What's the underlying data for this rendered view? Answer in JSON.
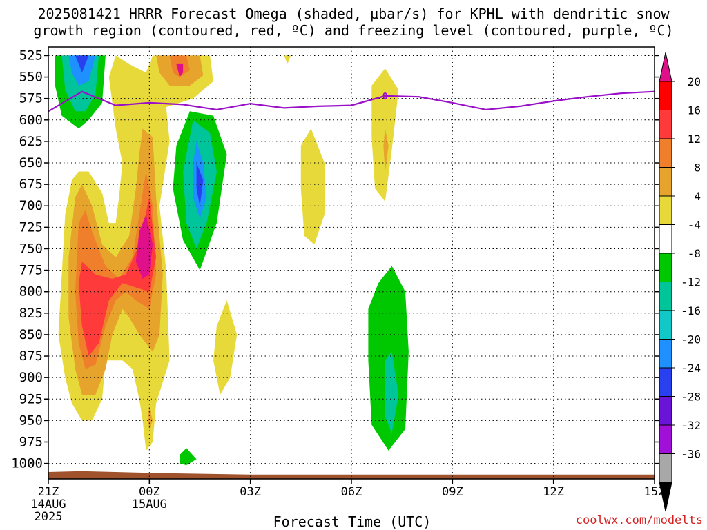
{
  "title": {
    "line1": "2025081421 HRRR Forecast Omega (shaded, µbar/s) for KPHL with dendritic snow",
    "line2": "growth region (contoured, red, ºC) and freezing level (contoured, purple, ºC)"
  },
  "xlabel": "Forecast Time (UTC)",
  "credit": "coolwx.com/modelts",
  "chart_data": {
    "type": "heatmap",
    "title": "2025081421 HRRR Forecast Omega (shaded, µbar/s) for KPHL with dendritic snow growth region (contoured, red, ºC) and freezing level (contoured, purple, ºC)",
    "xlabel": "Forecast Time (UTC)",
    "ylabel": "",
    "x_range_hours": [
      0,
      18
    ],
    "y_range_hPa": [
      1000,
      525
    ],
    "y_axis_inverted": true,
    "grid": true,
    "x_ticks": [
      {
        "hour": 0,
        "label": "21Z",
        "sub": [
          "14AUG",
          "2025"
        ]
      },
      {
        "hour": 3,
        "label": "00Z",
        "sub": [
          "15AUG"
        ]
      },
      {
        "hour": 6,
        "label": "03Z",
        "sub": []
      },
      {
        "hour": 9,
        "label": "06Z",
        "sub": []
      },
      {
        "hour": 12,
        "label": "09Z",
        "sub": []
      },
      {
        "hour": 15,
        "label": "12Z",
        "sub": []
      },
      {
        "hour": 18,
        "label": "15Z",
        "sub": []
      }
    ],
    "y_ticks": [
      525,
      550,
      575,
      600,
      625,
      650,
      675,
      700,
      725,
      750,
      775,
      800,
      825,
      850,
      875,
      900,
      925,
      950,
      975,
      1000
    ],
    "colorbar": {
      "levels": [
        20,
        16,
        12,
        8,
        4,
        -4,
        -8,
        -12,
        -16,
        -20,
        -24,
        -28,
        -32,
        -36
      ],
      "colors": [
        "#ff0000",
        "#ff3a3a",
        "#ef7f2a",
        "#e6a42c",
        "#e8d93a",
        "#ffffff",
        "#00c800",
        "#00c49a",
        "#10c8c8",
        "#1e90ff",
        "#2840f0",
        "#6a14d8",
        "#a010d8",
        "#a8a8a8"
      ],
      "top_arrow_color": "#e0108a",
      "bottom_arrow_color": "#000000"
    },
    "freezing_level": {
      "label": "0",
      "points": [
        {
          "hour": 0.0,
          "hPa": 590
        },
        {
          "hour": 1.0,
          "hPa": 567
        },
        {
          "hour": 2.0,
          "hPa": 583
        },
        {
          "hour": 3.0,
          "hPa": 580
        },
        {
          "hour": 4.0,
          "hPa": 582
        },
        {
          "hour": 5.0,
          "hPa": 588
        },
        {
          "hour": 6.0,
          "hPa": 581
        },
        {
          "hour": 7.0,
          "hPa": 586
        },
        {
          "hour": 8.0,
          "hPa": 584
        },
        {
          "hour": 9.0,
          "hPa": 583
        },
        {
          "hour": 10.0,
          "hPa": 572
        },
        {
          "hour": 11.0,
          "hPa": 573
        },
        {
          "hour": 12.0,
          "hPa": 580
        },
        {
          "hour": 13.0,
          "hPa": 588
        },
        {
          "hour": 14.0,
          "hPa": 584
        },
        {
          "hour": 15.0,
          "hPa": 578
        },
        {
          "hour": 16.0,
          "hPa": 573
        },
        {
          "hour": 17.0,
          "hPa": 569
        },
        {
          "hour": 18.0,
          "hPa": 567
        }
      ]
    },
    "terrain": {
      "color": "#a0522d",
      "points": [
        {
          "hour": 0.0,
          "hPa": 1010
        },
        {
          "hour": 1.0,
          "hPa": 1009
        },
        {
          "hour": 3.0,
          "hPa": 1011
        },
        {
          "hour": 6.0,
          "hPa": 1013
        },
        {
          "hour": 9.0,
          "hPa": 1013
        },
        {
          "hour": 12.0,
          "hPa": 1013
        },
        {
          "hour": 15.0,
          "hPa": 1013
        },
        {
          "hour": 18.0,
          "hPa": 1013
        }
      ]
    },
    "omega_regions": [
      {
        "level": -8,
        "color": "#00c800",
        "points": [
          [
            0.2,
            525
          ],
          [
            1.7,
            525
          ],
          [
            1.6,
            580
          ],
          [
            1.2,
            600
          ],
          [
            0.9,
            610
          ],
          [
            0.4,
            595
          ],
          [
            0.2,
            560
          ]
        ]
      },
      {
        "level": -12,
        "color": "#00c49a",
        "points": [
          [
            0.4,
            525
          ],
          [
            1.5,
            525
          ],
          [
            1.4,
            570
          ],
          [
            1.1,
            590
          ],
          [
            0.8,
            590
          ],
          [
            0.5,
            565
          ]
        ]
      },
      {
        "level": -16,
        "color": "#1e90ff",
        "points": [
          [
            0.6,
            525
          ],
          [
            1.4,
            525
          ],
          [
            1.2,
            555
          ],
          [
            0.9,
            560
          ],
          [
            0.7,
            545
          ]
        ]
      },
      {
        "level": -24,
        "color": "#2840f0",
        "points": [
          [
            0.8,
            525
          ],
          [
            1.2,
            525
          ],
          [
            1.0,
            545
          ]
        ]
      },
      {
        "level": 4,
        "color": "#e8d93a",
        "points": [
          [
            2.0,
            525
          ],
          [
            2.4,
            535
          ],
          [
            2.9,
            545
          ],
          [
            3.1,
            525
          ],
          [
            4.8,
            525
          ],
          [
            4.9,
            555
          ],
          [
            4.3,
            575
          ],
          [
            3.5,
            585
          ],
          [
            3.6,
            625
          ],
          [
            3.3,
            700
          ],
          [
            3.5,
            775
          ],
          [
            3.6,
            880
          ],
          [
            3.2,
            930
          ],
          [
            3.1,
            975
          ],
          [
            2.9,
            985
          ],
          [
            2.8,
            950
          ],
          [
            2.7,
            925
          ],
          [
            2.5,
            890
          ],
          [
            2.2,
            880
          ],
          [
            1.7,
            880
          ],
          [
            1.6,
            925
          ],
          [
            1.3,
            950
          ],
          [
            1.0,
            950
          ],
          [
            0.7,
            930
          ],
          [
            0.5,
            900
          ],
          [
            0.3,
            850
          ],
          [
            0.4,
            780
          ],
          [
            0.5,
            710
          ],
          [
            0.7,
            670
          ],
          [
            0.9,
            660
          ],
          [
            1.2,
            660
          ],
          [
            1.6,
            685
          ],
          [
            1.8,
            720
          ],
          [
            2.0,
            720
          ],
          [
            2.1,
            690
          ],
          [
            2.2,
            650
          ],
          [
            2.0,
            610
          ],
          [
            1.9,
            580
          ],
          [
            1.8,
            550
          ]
        ]
      },
      {
        "level": 8,
        "color": "#e6a42c",
        "points": [
          [
            3.2,
            525
          ],
          [
            4.5,
            525
          ],
          [
            4.6,
            548
          ],
          [
            4.2,
            560
          ],
          [
            3.6,
            560
          ],
          [
            3.3,
            545
          ]
        ]
      },
      {
        "level": 8,
        "color": "#e6a42c",
        "points": [
          [
            2.8,
            610
          ],
          [
            3.1,
            620
          ],
          [
            3.2,
            690
          ],
          [
            3.4,
            780
          ],
          [
            3.3,
            850
          ],
          [
            3.1,
            870
          ],
          [
            2.7,
            850
          ],
          [
            2.4,
            830
          ],
          [
            2.2,
            820
          ],
          [
            1.9,
            850
          ],
          [
            1.7,
            890
          ],
          [
            1.4,
            920
          ],
          [
            1.0,
            920
          ],
          [
            0.8,
            890
          ],
          [
            0.6,
            830
          ],
          [
            0.6,
            760
          ],
          [
            0.8,
            690
          ],
          [
            1.0,
            675
          ],
          [
            1.3,
            700
          ],
          [
            1.6,
            745
          ],
          [
            2.0,
            760
          ],
          [
            2.4,
            735
          ],
          [
            2.6,
            680
          ],
          [
            2.7,
            640
          ]
        ]
      },
      {
        "level": 12,
        "color": "#ef7f2a",
        "points": [
          [
            3.6,
            525
          ],
          [
            4.1,
            525
          ],
          [
            4.2,
            542
          ],
          [
            3.9,
            550
          ],
          [
            3.7,
            545
          ]
        ]
      },
      {
        "level": 12,
        "color": "#ef7f2a",
        "points": [
          [
            2.9,
            660
          ],
          [
            3.1,
            700
          ],
          [
            3.2,
            780
          ],
          [
            3.0,
            820
          ],
          [
            2.6,
            810
          ],
          [
            2.3,
            800
          ],
          [
            2.0,
            810
          ],
          [
            1.7,
            840
          ],
          [
            1.4,
            885
          ],
          [
            1.1,
            890
          ],
          [
            0.9,
            860
          ],
          [
            0.8,
            800
          ],
          [
            0.9,
            720
          ],
          [
            1.1,
            705
          ],
          [
            1.3,
            730
          ],
          [
            1.7,
            770
          ],
          [
            2.1,
            785
          ],
          [
            2.5,
            760
          ],
          [
            2.7,
            710
          ]
        ]
      },
      {
        "level": 16,
        "color": "#ff3a3a",
        "points": [
          [
            3.0,
            690
          ],
          [
            3.2,
            760
          ],
          [
            3.0,
            800
          ],
          [
            2.6,
            795
          ],
          [
            2.2,
            790
          ],
          [
            1.8,
            810
          ],
          [
            1.5,
            860
          ],
          [
            1.2,
            875
          ],
          [
            1.0,
            840
          ],
          [
            0.9,
            790
          ],
          [
            1.0,
            765
          ],
          [
            1.4,
            780
          ],
          [
            1.9,
            785
          ],
          [
            2.3,
            780
          ],
          [
            2.7,
            745
          ]
        ]
      },
      {
        "level": 20,
        "color": "#e0108a",
        "points": [
          [
            2.9,
            710
          ],
          [
            3.1,
            745
          ],
          [
            3.0,
            780
          ],
          [
            2.8,
            785
          ],
          [
            2.6,
            765
          ],
          [
            2.7,
            730
          ]
        ]
      },
      {
        "level": 20,
        "color": "#e0108a",
        "points": [
          [
            3.8,
            535
          ],
          [
            4.0,
            535
          ],
          [
            4.0,
            545
          ],
          [
            3.9,
            550
          ]
        ]
      },
      {
        "level": -8,
        "color": "#00c800",
        "points": [
          [
            4.2,
            590
          ],
          [
            4.9,
            595
          ],
          [
            5.3,
            640
          ],
          [
            5.0,
            720
          ],
          [
            4.5,
            775
          ],
          [
            4.0,
            740
          ],
          [
            3.7,
            680
          ],
          [
            3.8,
            630
          ]
        ]
      },
      {
        "level": -12,
        "color": "#00c49a",
        "points": [
          [
            4.3,
            600
          ],
          [
            4.8,
            615
          ],
          [
            5.0,
            660
          ],
          [
            4.7,
            720
          ],
          [
            4.4,
            750
          ],
          [
            4.1,
            720
          ],
          [
            4.0,
            660
          ]
        ]
      },
      {
        "level": -16,
        "color": "#1e90ff",
        "points": [
          [
            4.4,
            625
          ],
          [
            4.6,
            650
          ],
          [
            4.7,
            690
          ],
          [
            4.5,
            715
          ],
          [
            4.3,
            690
          ],
          [
            4.3,
            650
          ]
        ]
      },
      {
        "level": -20,
        "color": "#2840f0",
        "points": [
          [
            4.4,
            650
          ],
          [
            4.6,
            670
          ],
          [
            4.5,
            700
          ],
          [
            4.4,
            680
          ]
        ]
      },
      {
        "level": 4,
        "color": "#e8d93a",
        "points": [
          [
            7.5,
            630
          ],
          [
            7.8,
            610
          ],
          [
            8.2,
            650
          ],
          [
            8.2,
            710
          ],
          [
            7.9,
            745
          ],
          [
            7.6,
            735
          ],
          [
            7.5,
            680
          ]
        ]
      },
      {
        "level": 4,
        "color": "#e8d93a",
        "points": [
          [
            5.0,
            840
          ],
          [
            5.3,
            810
          ],
          [
            5.6,
            850
          ],
          [
            5.4,
            900
          ],
          [
            5.1,
            920
          ],
          [
            4.9,
            880
          ]
        ]
      },
      {
        "level": 4,
        "color": "#e8d93a",
        "points": [
          [
            9.6,
            560
          ],
          [
            10.0,
            540
          ],
          [
            10.4,
            565
          ],
          [
            10.2,
            635
          ],
          [
            10.0,
            695
          ],
          [
            9.7,
            680
          ],
          [
            9.6,
            620
          ]
        ]
      },
      {
        "level": 8,
        "color": "#e6a42c",
        "points": [
          [
            10.0,
            610
          ],
          [
            10.1,
            630
          ],
          [
            10.0,
            660
          ],
          [
            9.95,
            630
          ]
        ]
      },
      {
        "level": 8,
        "color": "#e6a42c",
        "points": [
          [
            3.0,
            935
          ],
          [
            3.1,
            950
          ],
          [
            3.0,
            960
          ],
          [
            2.95,
            945
          ]
        ]
      },
      {
        "level": -8,
        "color": "#00c800",
        "points": [
          [
            9.8,
            790
          ],
          [
            10.2,
            770
          ],
          [
            10.6,
            800
          ],
          [
            10.7,
            870
          ],
          [
            10.6,
            960
          ],
          [
            10.1,
            985
          ],
          [
            9.6,
            955
          ],
          [
            9.5,
            880
          ],
          [
            9.5,
            820
          ]
        ]
      },
      {
        "level": -12,
        "color": "#00c49a",
        "points": [
          [
            10.0,
            880
          ],
          [
            10.2,
            870
          ],
          [
            10.4,
            920
          ],
          [
            10.2,
            965
          ],
          [
            10.0,
            945
          ]
        ]
      },
      {
        "level": -8,
        "color": "#00c800",
        "points": [
          [
            3.9,
            990
          ],
          [
            4.1,
            982
          ],
          [
            4.4,
            995
          ],
          [
            4.1,
            1002
          ],
          [
            3.9,
            1000
          ]
        ]
      },
      {
        "level": 4,
        "color": "#e8d93a",
        "points": [
          [
            7.0,
            525
          ],
          [
            7.2,
            525
          ],
          [
            7.1,
            535
          ]
        ]
      }
    ]
  }
}
